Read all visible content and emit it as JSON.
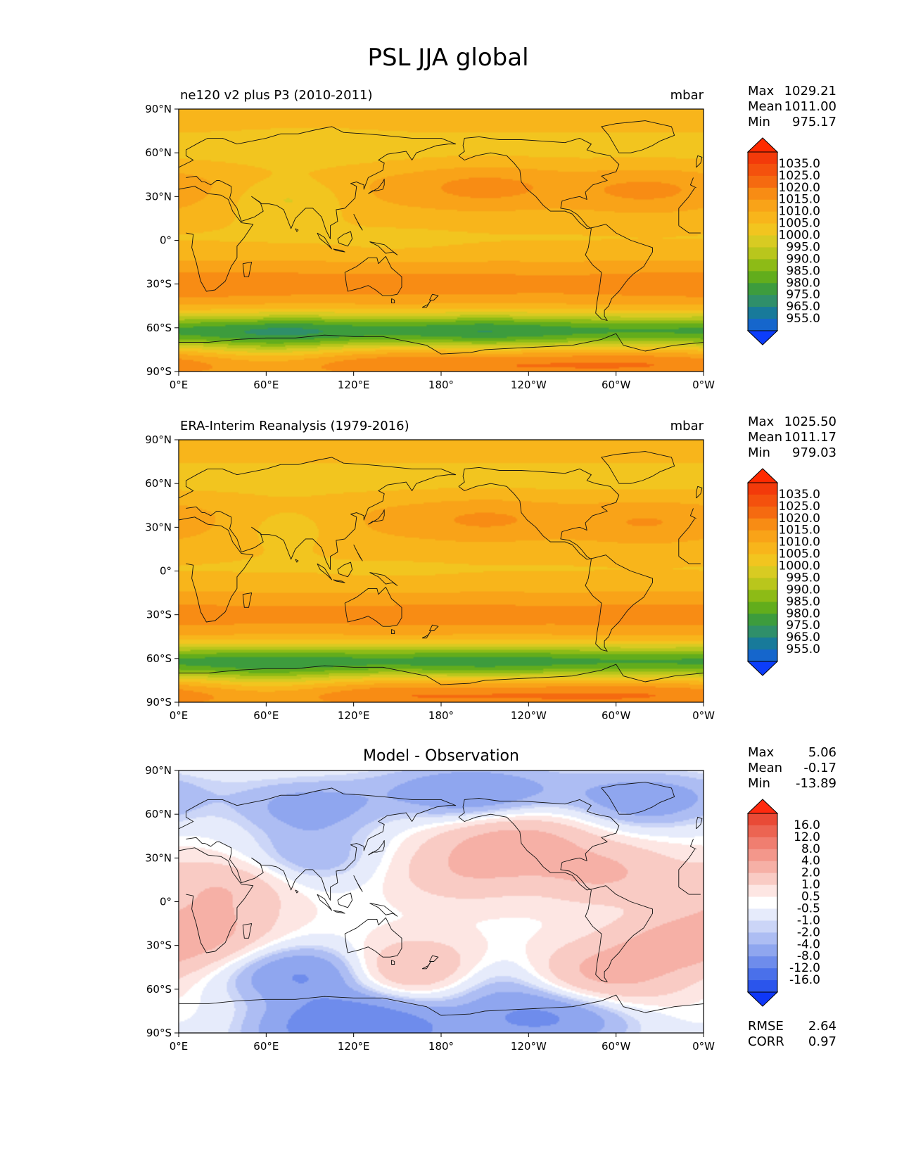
{
  "figure": {
    "title": "PSL JJA global"
  },
  "colors": {
    "psl_levels": [
      "#0c3dfa",
      "#1566cc",
      "#187a9a",
      "#2f8f6a",
      "#3d9c3d",
      "#62ad1c",
      "#8dbb16",
      "#b9c61c",
      "#d8cb22",
      "#f2c51f",
      "#f8b51b",
      "#f9a318",
      "#f88c14",
      "#f56a10",
      "#f4510d",
      "#f33a0a",
      "#ff2a00"
    ],
    "diff_levels": [
      "#0f37f7",
      "#2b55ec",
      "#4a70ea",
      "#6e8cec",
      "#8fa6ef",
      "#adbdf3",
      "#cbd5f7",
      "#e6ebfb",
      "#ffffff",
      "#fde6e3",
      "#f9cbc4",
      "#f6b0a6",
      "#f3978b",
      "#f07e70",
      "#ec6452",
      "#e94a36",
      "#ff2a0f"
    ],
    "coast": "#111111",
    "axis": "#000000"
  },
  "chart_data": [
    {
      "type": "heatmap",
      "panel": "model",
      "title_left": "ne120 v2 plus P3 (2010-2011)",
      "title_right": "mbar",
      "stats": {
        "max_label": "Max",
        "max": "1029.21",
        "mean_label": "Mean",
        "mean": "1011.00",
        "min_label": "Min",
        "min": "975.17"
      },
      "x_ticks": [
        "0°E",
        "60°E",
        "120°E",
        "180°",
        "120°W",
        "60°W",
        "0°W"
      ],
      "y_ticks": [
        "90°N",
        "60°N",
        "30°N",
        "0°",
        "30°S",
        "60°S",
        "90°S"
      ],
      "xlim": [
        0,
        360
      ],
      "ylim": [
        -90,
        90
      ],
      "colorbar_labels": [
        "1035.0",
        "1025.0",
        "1020.0",
        "1015.0",
        "1010.0",
        "1005.0",
        "1000.0",
        "995.0",
        "990.0",
        "985.0",
        "980.0",
        "975.0",
        "965.0",
        "955.0"
      ],
      "field_features": [
        {
          "lon": 150,
          "lat": -5,
          "value": 1009
        },
        {
          "lon": 210,
          "lat": 38,
          "value": 1026
        },
        {
          "lon": 320,
          "lat": 34,
          "value": 1025
        },
        {
          "lon": 40,
          "lat": -32,
          "value": 1023
        },
        {
          "lon": 100,
          "lat": -30,
          "value": 1022
        },
        {
          "lon": 260,
          "lat": -30,
          "value": 1021
        },
        {
          "lon": 350,
          "lat": -30,
          "value": 1023
        },
        {
          "lon": 90,
          "lat": 62,
          "value": 1005
        },
        {
          "lon": 75,
          "lat": 30,
          "value": 996
        },
        {
          "lon": 80,
          "lat": -62,
          "value": 978
        },
        {
          "lon": 210,
          "lat": -64,
          "value": 977
        },
        {
          "lon": 320,
          "lat": -62,
          "value": 985
        },
        {
          "lon": 60,
          "lat": -80,
          "value": 1004
        }
      ]
    },
    {
      "type": "heatmap",
      "panel": "observation",
      "title_left": "ERA-Interim Reanalysis (1979-2016)",
      "title_right": "mbar",
      "stats": {
        "max_label": "Max",
        "max": "1025.50",
        "mean_label": "Mean",
        "mean": "1011.17",
        "min_label": "Min",
        "min": "979.03"
      },
      "x_ticks": [
        "0°E",
        "60°E",
        "120°E",
        "180°",
        "120°W",
        "60°W",
        "0°W"
      ],
      "y_ticks": [
        "90°N",
        "60°N",
        "30°N",
        "0°",
        "30°S",
        "60°S",
        "90°S"
      ],
      "xlim": [
        0,
        360
      ],
      "ylim": [
        -90,
        90
      ],
      "colorbar_labels": [
        "1035.0",
        "1025.0",
        "1020.0",
        "1015.0",
        "1010.0",
        "1005.0",
        "1000.0",
        "995.0",
        "990.0",
        "985.0",
        "980.0",
        "975.0",
        "965.0",
        "955.0"
      ],
      "field_features": [
        {
          "lon": 150,
          "lat": -5,
          "value": 1010
        },
        {
          "lon": 210,
          "lat": 36,
          "value": 1024
        },
        {
          "lon": 320,
          "lat": 32,
          "value": 1023
        },
        {
          "lon": 40,
          "lat": -32,
          "value": 1021
        },
        {
          "lon": 105,
          "lat": -30,
          "value": 1021
        },
        {
          "lon": 260,
          "lat": -30,
          "value": 1021
        },
        {
          "lon": 350,
          "lat": -30,
          "value": 1022
        },
        {
          "lon": 90,
          "lat": 62,
          "value": 1008
        },
        {
          "lon": 75,
          "lat": 32,
          "value": 1002
        },
        {
          "lon": 80,
          "lat": -62,
          "value": 983
        },
        {
          "lon": 210,
          "lat": -64,
          "value": 981
        },
        {
          "lon": 320,
          "lat": -62,
          "value": 985
        },
        {
          "lon": 60,
          "lat": -80,
          "value": 1004
        }
      ]
    },
    {
      "type": "heatmap",
      "panel": "difference",
      "title_center": "Model - Observation",
      "stats": {
        "max_label": "Max",
        "max": "5.06",
        "mean_label": "Mean",
        "mean": "-0.17",
        "min_label": "Min",
        "min": "-13.89"
      },
      "extra_stats": {
        "rmse_label": "RMSE",
        "rmse": "2.64",
        "corr_label": "CORR",
        "corr": "0.97"
      },
      "x_ticks": [
        "0°E",
        "60°E",
        "120°E",
        "180°",
        "120°W",
        "60°W",
        "0°W"
      ],
      "y_ticks": [
        "90°N",
        "60°N",
        "30°N",
        "0°",
        "30°S",
        "60°S",
        "90°S"
      ],
      "xlim": [
        0,
        360
      ],
      "ylim": [
        -90,
        90
      ],
      "colorbar_labels": [
        "16.0",
        "12.0",
        "8.0",
        "4.0",
        "2.0",
        "1.0",
        "0.5",
        "-0.5",
        "-1.0",
        "-2.0",
        "-4.0",
        "-8.0",
        "-12.0",
        "-16.0"
      ],
      "field_features": [
        {
          "lon": 90,
          "lat": 65,
          "value": -3.5
        },
        {
          "lon": 200,
          "lat": 75,
          "value": -4.5
        },
        {
          "lon": 320,
          "lat": 70,
          "value": -4.0
        },
        {
          "lon": 90,
          "lat": 30,
          "value": -2.5
        },
        {
          "lon": 30,
          "lat": 10,
          "value": 3.0
        },
        {
          "lon": 20,
          "lat": -20,
          "value": 3.0
        },
        {
          "lon": 195,
          "lat": 20,
          "value": 2.5
        },
        {
          "lon": 230,
          "lat": 40,
          "value": 4.5
        },
        {
          "lon": 290,
          "lat": 20,
          "value": 3.5
        },
        {
          "lon": 290,
          "lat": -50,
          "value": 4.0
        },
        {
          "lon": 340,
          "lat": -30,
          "value": 3.5
        },
        {
          "lon": 165,
          "lat": -48,
          "value": 4.5
        },
        {
          "lon": 85,
          "lat": -50,
          "value": -5.0
        },
        {
          "lon": 210,
          "lat": -55,
          "value": -3.0
        },
        {
          "lon": 120,
          "lat": -85,
          "value": -8.0
        },
        {
          "lon": 250,
          "lat": -80,
          "value": -5.0
        }
      ]
    }
  ]
}
